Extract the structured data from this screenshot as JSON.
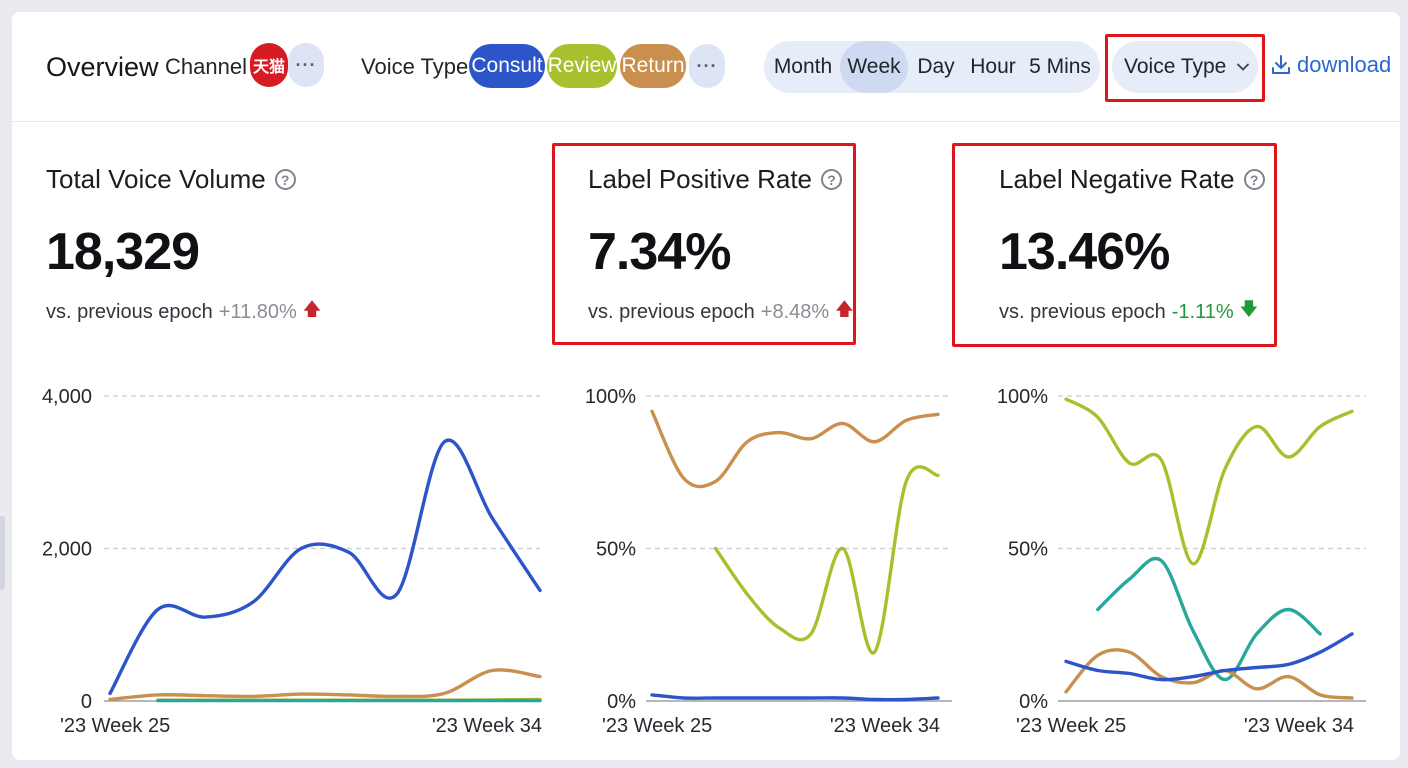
{
  "toolbar": {
    "title": "Overview",
    "channel_label": "Channel",
    "channel_badge": "天猫",
    "more_symbol": "···",
    "voice_type_label": "Voice Type",
    "voice_types": [
      {
        "label": "Consult",
        "color": "#2b55c9"
      },
      {
        "label": "Review",
        "color": "#a6c12d"
      },
      {
        "label": "Return",
        "color": "#c98f4e"
      }
    ],
    "granularity": [
      "Month",
      "Week",
      "Day",
      "Hour",
      "5 Mins"
    ],
    "granularity_selected": "Week",
    "dropdown_value": "Voice Type",
    "download_label": "download"
  },
  "metrics": [
    {
      "title": "Total Voice Volume",
      "value": "18,329",
      "compare_label": "vs. previous epoch",
      "delta": "+11.80%",
      "direction": "up",
      "highlighted": false
    },
    {
      "title": "Label Positive Rate",
      "value": "7.34%",
      "compare_label": "vs. previous epoch",
      "delta": "+8.48%",
      "direction": "up",
      "highlighted": true
    },
    {
      "title": "Label Negative Rate",
      "value": "13.46%",
      "compare_label": "vs. previous epoch",
      "delta": "-1.11%",
      "direction": "down",
      "highlighted": true
    }
  ],
  "chart_data": [
    {
      "type": "line",
      "title": "Total Voice Volume",
      "x": [
        "'23 Week 25",
        "'23 Week 26",
        "'23 Week 27",
        "'23 Week 28",
        "'23 Week 29",
        "'23 Week 30",
        "'23 Week 31",
        "'23 Week 32",
        "'23 Week 33",
        "'23 Week 34"
      ],
      "x_tick_labels": [
        "'23 Week 25",
        "'23 Week 34"
      ],
      "y_ticks": [
        "0",
        "2,000",
        "4,000"
      ],
      "ylim": [
        0,
        4000
      ],
      "grid": true,
      "series": [
        {
          "color": "#2b55c9",
          "values": [
            100,
            1200,
            1100,
            1300,
            2000,
            1950,
            1400,
            3400,
            2400,
            1450
          ]
        },
        {
          "color": "#c98f4e",
          "values": [
            20,
            80,
            70,
            60,
            90,
            80,
            60,
            100,
            400,
            320
          ]
        },
        {
          "color": "#a6c12d",
          "values": [
            null,
            10,
            10,
            10,
            10,
            10,
            10,
            10,
            15,
            20
          ]
        },
        {
          "color": "#2aa79b",
          "values": [
            null,
            5,
            5,
            5,
            5,
            5,
            5,
            5,
            5,
            5
          ]
        }
      ]
    },
    {
      "type": "line",
      "title": "Label Positive Rate",
      "x": [
        "'23 Week 25",
        "'23 Week 26",
        "'23 Week 27",
        "'23 Week 28",
        "'23 Week 29",
        "'23 Week 30",
        "'23 Week 31",
        "'23 Week 32",
        "'23 Week 33",
        "'23 Week 34"
      ],
      "x_tick_labels": [
        "'23 Week 25",
        "'23 Week 34"
      ],
      "y_ticks": [
        "0%",
        "50%",
        "100%"
      ],
      "ylim": [
        0,
        100
      ],
      "grid": true,
      "series": [
        {
          "color": "#c98f4e",
          "values": [
            95,
            73,
            72,
            85,
            88,
            86,
            91,
            85,
            92,
            94
          ]
        },
        {
          "color": "#a6c12d",
          "values": [
            null,
            null,
            50,
            35,
            24,
            22,
            50,
            16,
            72,
            74
          ]
        },
        {
          "color": "#2b55c9",
          "values": [
            2,
            1,
            1,
            1,
            1,
            1,
            1,
            0.5,
            0.5,
            1
          ]
        }
      ]
    },
    {
      "type": "line",
      "title": "Label Negative Rate",
      "x": [
        "'23 Week 25",
        "'23 Week 26",
        "'23 Week 27",
        "'23 Week 28",
        "'23 Week 29",
        "'23 Week 30",
        "'23 Week 31",
        "'23 Week 32",
        "'23 Week 33",
        "'23 Week 34"
      ],
      "x_tick_labels": [
        "'23 Week 25",
        "'23 Week 34"
      ],
      "y_ticks": [
        "0%",
        "50%",
        "100%"
      ],
      "ylim": [
        0,
        100
      ],
      "grid": true,
      "series": [
        {
          "color": "#a6c12d",
          "values": [
            99,
            93,
            78,
            79,
            45,
            76,
            90,
            80,
            90,
            95
          ]
        },
        {
          "color": "#2aa79b",
          "values": [
            null,
            30,
            40,
            46,
            23,
            7,
            22,
            30,
            22,
            null
          ]
        },
        {
          "color": "#c98f4e",
          "values": [
            3,
            15,
            16,
            8,
            6,
            10,
            4,
            8,
            2,
            1
          ]
        },
        {
          "color": "#2b55c9",
          "values": [
            13,
            10,
            9,
            7,
            8,
            10,
            11,
            12,
            16,
            22
          ]
        }
      ]
    }
  ]
}
